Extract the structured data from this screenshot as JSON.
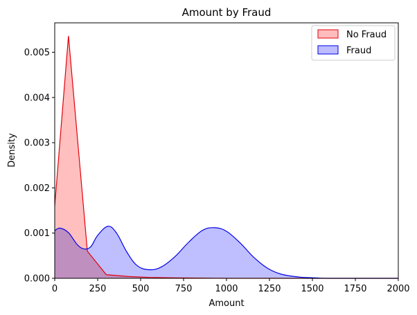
{
  "chart_data": {
    "type": "area",
    "title": "Amount by Fraud",
    "xlabel": "Amount",
    "ylabel": "Density",
    "xlim": [
      0,
      2000
    ],
    "ylim": [
      0,
      0.00565
    ],
    "xticks": [
      0,
      250,
      500,
      750,
      1000,
      1250,
      1500,
      1750,
      2000
    ],
    "yticks": [
      0.0,
      0.001,
      0.002,
      0.003,
      0.004,
      0.005
    ],
    "ytick_labels": [
      "0.000",
      "0.001",
      "0.002",
      "0.003",
      "0.004",
      "0.005"
    ],
    "grid": false,
    "legend_position": "top-right",
    "series": [
      {
        "name": "No Fraud",
        "color": "#e0000b",
        "fill": "#ffbcbc",
        "points": [
          [
            0,
            0.0016
          ],
          [
            80,
            0.00536
          ],
          [
            190,
            0.0006
          ],
          [
            300,
            8e-05
          ],
          [
            430,
            4e-05
          ],
          [
            550,
            2e-05
          ],
          [
            700,
            1e-05
          ],
          [
            1000,
            0.0
          ],
          [
            1600,
            0.0
          ],
          [
            2000,
            0.0
          ]
        ]
      },
      {
        "name": "Fraud",
        "color": "#0000e6",
        "fill": "#bcbcff",
        "points": [
          [
            0,
            0.00105
          ],
          [
            30,
            0.00111
          ],
          [
            80,
            0.00101
          ],
          [
            130,
            0.00075
          ],
          [
            170,
            0.00065
          ],
          [
            210,
            0.0007
          ],
          [
            250,
            0.00095
          ],
          [
            310,
            0.00115
          ],
          [
            360,
            0.001
          ],
          [
            420,
            0.00058
          ],
          [
            480,
            0.00028
          ],
          [
            550,
            0.00019
          ],
          [
            620,
            0.00025
          ],
          [
            700,
            0.00048
          ],
          [
            780,
            0.0008
          ],
          [
            860,
            0.00106
          ],
          [
            930,
            0.00112
          ],
          [
            1000,
            0.00104
          ],
          [
            1080,
            0.00078
          ],
          [
            1160,
            0.00046
          ],
          [
            1240,
            0.00022
          ],
          [
            1320,
            9e-05
          ],
          [
            1420,
            3e-05
          ],
          [
            1520,
            1e-05
          ],
          [
            1600,
            0.0
          ],
          [
            2000,
            0.0
          ]
        ]
      }
    ]
  }
}
